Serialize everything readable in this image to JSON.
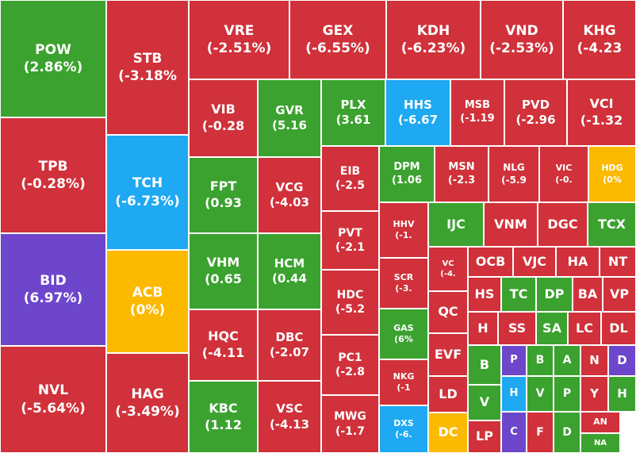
{
  "colors": {
    "down": "#d0313a",
    "up": "#3ba22f",
    "ceiling": "#6d46cc",
    "floor": "#1ea9f2",
    "ref": "#fbb900"
  },
  "chart_data": {
    "type": "treemap",
    "tiles": [
      {
        "label": "POW",
        "value": "(2.86%)",
        "status": "up"
      },
      {
        "label": "TPB",
        "value": "(-0.28%)",
        "status": "down"
      },
      {
        "label": "BID",
        "value": "(6.97%)",
        "status": "ceiling"
      },
      {
        "label": "NVL",
        "value": "(-5.64%)",
        "status": "down"
      },
      {
        "label": "STB",
        "value": "(-3.18%",
        "status": "down"
      },
      {
        "label": "TCH",
        "value": "(-6.73%)",
        "status": "floor"
      },
      {
        "label": "ACB",
        "value": "(0%)",
        "status": "ref"
      },
      {
        "label": "HAG",
        "value": "(-3.49%)",
        "status": "down"
      },
      {
        "label": "VRE",
        "value": "(-2.51%)",
        "status": "down"
      },
      {
        "label": "GEX",
        "value": "(-6.55%)",
        "status": "down"
      },
      {
        "label": "KDH",
        "value": "(-6.23%)",
        "status": "down"
      },
      {
        "label": "VND",
        "value": "(-2.53%)",
        "status": "down"
      },
      {
        "label": "KHG",
        "value": "(-4.23",
        "status": "down"
      },
      {
        "label": "VIB",
        "value": "(-0.28",
        "status": "down"
      },
      {
        "label": "GVR",
        "value": "(5.16",
        "status": "up"
      },
      {
        "label": "PLX",
        "value": "(3.61",
        "status": "up"
      },
      {
        "label": "HHS",
        "value": "(-6.67",
        "status": "floor"
      },
      {
        "label": "MSB",
        "value": "(-1.19",
        "status": "down"
      },
      {
        "label": "PVD",
        "value": "(-2.96",
        "status": "down"
      },
      {
        "label": "VCI",
        "value": "(-1.32",
        "status": "down"
      },
      {
        "label": "FPT",
        "value": "(0.93",
        "status": "up"
      },
      {
        "label": "VCG",
        "value": "(-4.03",
        "status": "down"
      },
      {
        "label": "VHM",
        "value": "(0.65",
        "status": "up"
      },
      {
        "label": "HCM",
        "value": "(0.44",
        "status": "up"
      },
      {
        "label": "HQC",
        "value": "(-4.11",
        "status": "down"
      },
      {
        "label": "DBC",
        "value": "(-2.07",
        "status": "down"
      },
      {
        "label": "KBC",
        "value": "(1.12",
        "status": "up"
      },
      {
        "label": "VSC",
        "value": "(-4.13",
        "status": "down"
      },
      {
        "label": "EIB",
        "value": "(-2.5",
        "status": "down"
      },
      {
        "label": "PVT",
        "value": "(-2.1",
        "status": "down"
      },
      {
        "label": "HDC",
        "value": "(-5.2",
        "status": "down"
      },
      {
        "label": "PC1",
        "value": "(-2.8",
        "status": "down"
      },
      {
        "label": "MWG",
        "value": "(-1.7",
        "status": "down"
      },
      {
        "label": "DPM",
        "value": "(1.06",
        "status": "up"
      },
      {
        "label": "MSN",
        "value": "(-2.3",
        "status": "down"
      },
      {
        "label": "NLG",
        "value": "(-5.9",
        "status": "down"
      },
      {
        "label": "VIC",
        "value": "(-0.",
        "status": "down"
      },
      {
        "label": "HDG",
        "value": "(0%",
        "status": "ref"
      },
      {
        "label": "HHV",
        "value": "(-1.",
        "status": "down"
      },
      {
        "label": "SCR",
        "value": "(-3.",
        "status": "down"
      },
      {
        "label": "GAS",
        "value": "(6%",
        "status": "up"
      },
      {
        "label": "NKG",
        "value": "(-1",
        "status": "down"
      },
      {
        "label": "DXS",
        "value": "(-6.",
        "status": "floor"
      },
      {
        "label": "IJC",
        "value": "",
        "status": "up"
      },
      {
        "label": "VNM",
        "value": "",
        "status": "down"
      },
      {
        "label": "DGC",
        "value": "",
        "status": "down"
      },
      {
        "label": "TCX",
        "value": "",
        "status": "up"
      },
      {
        "label": "VC",
        "value": "(-4.",
        "status": "down"
      },
      {
        "label": "QC",
        "value": "",
        "status": "down"
      },
      {
        "label": "EVF",
        "value": "",
        "status": "down"
      },
      {
        "label": "LD",
        "value": "",
        "status": "down"
      },
      {
        "label": "DC",
        "value": "",
        "status": "ref"
      },
      {
        "label": "OCB",
        "value": "",
        "status": "down"
      },
      {
        "label": "VJC",
        "value": "",
        "status": "down"
      },
      {
        "label": "HA",
        "value": "",
        "status": "down"
      },
      {
        "label": "NT",
        "value": "",
        "status": "down"
      },
      {
        "label": "HS",
        "value": "",
        "status": "down"
      },
      {
        "label": "TC",
        "value": "",
        "status": "up"
      },
      {
        "label": "DP",
        "value": "",
        "status": "up"
      },
      {
        "label": "BA",
        "value": "",
        "status": "down"
      },
      {
        "label": "VP",
        "value": "",
        "status": "down"
      },
      {
        "label": "H",
        "value": "",
        "status": "down"
      },
      {
        "label": "SS",
        "value": "",
        "status": "down"
      },
      {
        "label": "SA",
        "value": "",
        "status": "up"
      },
      {
        "label": "LC",
        "value": "",
        "status": "down"
      },
      {
        "label": "DL",
        "value": "",
        "status": "down"
      },
      {
        "label": "B",
        "value": "",
        "status": "up"
      },
      {
        "label": "P",
        "value": "",
        "status": "ceiling"
      },
      {
        "label": "B",
        "value": "",
        "status": "up"
      },
      {
        "label": "A",
        "value": "",
        "status": "up"
      },
      {
        "label": "N",
        "value": "",
        "status": "down"
      },
      {
        "label": "D",
        "value": "",
        "status": "ceiling"
      },
      {
        "label": "V",
        "value": "",
        "status": "up"
      },
      {
        "label": "H",
        "value": "",
        "status": "floor"
      },
      {
        "label": "V",
        "value": "",
        "status": "up"
      },
      {
        "label": "P",
        "value": "",
        "status": "up"
      },
      {
        "label": "Y",
        "value": "",
        "status": "down"
      },
      {
        "label": "H",
        "value": "",
        "status": "up"
      },
      {
        "label": "AN",
        "value": "",
        "status": "down"
      },
      {
        "label": "LP",
        "value": "",
        "status": "down"
      },
      {
        "label": "C",
        "value": "",
        "status": "ceiling"
      },
      {
        "label": "F",
        "value": "",
        "status": "down"
      },
      {
        "label": "D",
        "value": "",
        "status": "up"
      },
      {
        "label": "NA",
        "value": "",
        "status": "up"
      }
    ]
  }
}
